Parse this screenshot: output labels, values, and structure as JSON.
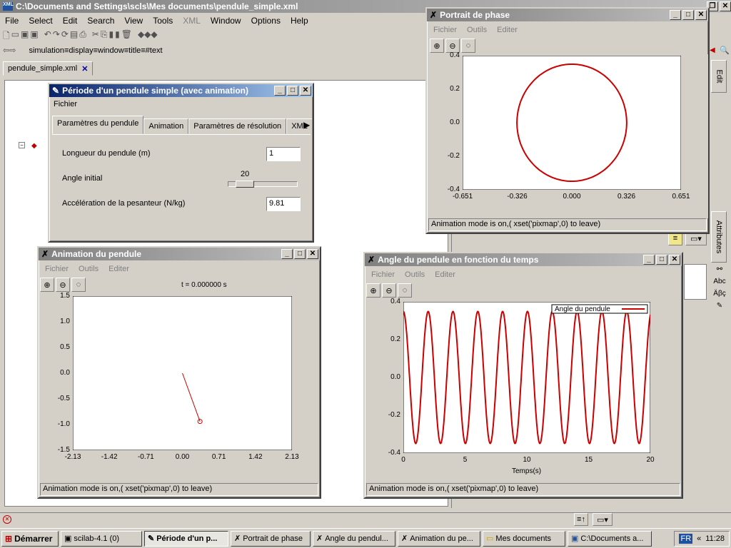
{
  "main_window": {
    "title": "C:\\Documents and Settings\\scls\\Mes documents\\pendule_simple.xml",
    "menus": [
      "File",
      "Select",
      "Edit",
      "Search",
      "View",
      "Tools",
      "XML",
      "Window",
      "Options",
      "Help"
    ],
    "path_bar": "simulation≡display≡window≡title≡#text",
    "doc_tab": "pendule_simple.xml",
    "side_tabs": [
      "Edit",
      "Attributes"
    ]
  },
  "dialog": {
    "title": "Période d'un pendule simple (avec animation)",
    "menu": "Fichier",
    "tabs": [
      "Paramètres du pendule",
      "Animation",
      "Paramètres de résolution",
      "XML"
    ],
    "length_label": "Longueur du pendule (m)",
    "length_value": "1",
    "angle_label": "Angle initial",
    "angle_value": "20",
    "angle_fraction": 0.2,
    "gravity_label": "Accélération de la pesanteur (N/kg)",
    "gravity_value": "9.81"
  },
  "phase_window": {
    "title": "Portrait de phase",
    "menus": [
      "Fichier",
      "Outils",
      "Editer"
    ],
    "status": "Animation mode is on,( xset('pixmap',0) to leave)",
    "yticks": [
      "0.4",
      "0.2",
      "0.0",
      "-0.2",
      "-0.4"
    ],
    "xticks": [
      "-0.651",
      "-0.326",
      "0.000",
      "0.326",
      "0.651"
    ]
  },
  "anim_window": {
    "title": "Animation du pendule",
    "menus": [
      "Fichier",
      "Outils",
      "Editer"
    ],
    "time_text": "t = 0.000000 s",
    "status": "Animation mode is on,( xset('pixmap',0) to leave)",
    "yticks": [
      "1.5",
      "1.0",
      "0.5",
      "0.0",
      "-0.5",
      "-1.0",
      "-1.5"
    ],
    "xticks": [
      "-2.13",
      "-1.42",
      "-0.71",
      "0.00",
      "0.71",
      "1.42",
      "2.13"
    ]
  },
  "angle_window": {
    "title": "Angle du pendule en fonction du temps",
    "menus": [
      "Fichier",
      "Outils",
      "Editer"
    ],
    "legend": "Angle du pendule",
    "xlabel": "Temps(s)",
    "status": "Animation mode is on,( xset('pixmap',0) to leave)",
    "yticks": [
      "0.4",
      "0.2",
      "0.0",
      "-0.2",
      "-0.4"
    ],
    "xticks": [
      "0",
      "5",
      "10",
      "15",
      "20"
    ]
  },
  "chart_data": [
    {
      "type": "line",
      "name": "phase_portrait",
      "x_range": [
        -0.651,
        0.651
      ],
      "y_range": [
        -0.4,
        0.4
      ],
      "shape": "closed orbit",
      "theta_amplitude": 0.349,
      "omega_amplitude": 1.09,
      "color": "#cc0000"
    },
    {
      "type": "line",
      "name": "pendulum_animation",
      "x_range": [
        -2.13,
        2.13
      ],
      "y_range": [
        -1.5,
        1.5
      ],
      "pivot": [
        0,
        0
      ],
      "bob": [
        0.342,
        -0.94
      ],
      "color": "#cc0000"
    },
    {
      "type": "line",
      "name": "angle_vs_time",
      "x_range": [
        0,
        20
      ],
      "y_range": [
        -0.4,
        0.4
      ],
      "amplitude": 0.349,
      "period_s": 2.01,
      "series": [
        {
          "name": "Angle du pendule",
          "color": "#cc0000"
        }
      ]
    }
  ],
  "taskbar": {
    "start": "Démarrer",
    "items": [
      "scilab-4.1 (0)",
      "Période d'un p...",
      "Portrait de phase",
      "Angle du pendul...",
      "Animation du pe...",
      "Mes documents",
      "C:\\Documents a..."
    ],
    "lang": "FR",
    "clock": "11:28"
  }
}
